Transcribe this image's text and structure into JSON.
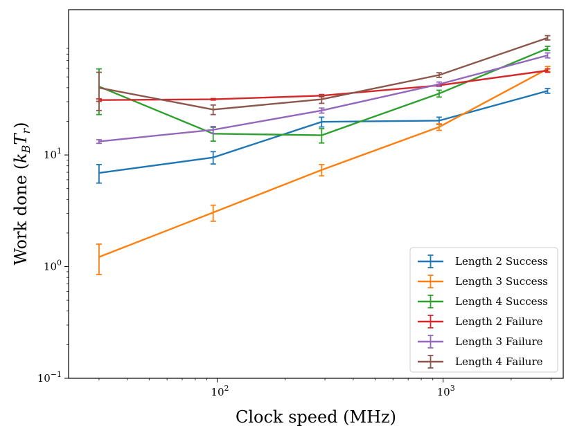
{
  "chart_data": {
    "type": "line",
    "title": "",
    "xlabel": "Clock speed (MHz)",
    "ylabel": {
      "main": "Work done (",
      "k": "k",
      "k_sub": "B",
      "t": "T",
      "t_sub": "r",
      "close": ")"
    },
    "xscale": "log",
    "yscale": "log",
    "xlim": [
      22,
      3400
    ],
    "ylim": [
      0.1,
      200
    ],
    "x_ticks": [
      {
        "value": 100,
        "base": "10",
        "exp": "2"
      },
      {
        "value": 1000,
        "base": "10",
        "exp": "3"
      }
    ],
    "y_ticks": [
      {
        "value": 0.1,
        "base": "10",
        "exp": "−1"
      },
      {
        "value": 1,
        "base": "10",
        "exp": "0"
      },
      {
        "value": 10,
        "base": "10",
        "exp": "1"
      }
    ],
    "legend_position": "lower-right",
    "x": [
      30,
      96,
      290,
      960,
      2900
    ],
    "series": [
      {
        "name": "Length 2 Success",
        "color": "#1f77b4",
        "values": [
          6.9,
          9.5,
          19.8,
          20.3,
          37.5
        ],
        "errors": [
          1.3,
          1.2,
          2.0,
          1.5,
          1.8
        ]
      },
      {
        "name": "Length 3 Success",
        "color": "#ff7f0e",
        "values": [
          1.22,
          3.05,
          7.35,
          17.8,
          59
        ],
        "errors": [
          0.37,
          0.5,
          0.85,
          1.2,
          3.0
        ]
      },
      {
        "name": "Length 4 Success",
        "color": "#2ca02c",
        "values": [
          41,
          15.5,
          15.0,
          35.5,
          90
        ],
        "errors": [
          18,
          2.2,
          2.2,
          2.5,
          4.0
        ]
      },
      {
        "name": "Length 2 Failure",
        "color": "#d62728",
        "values": [
          31,
          31.5,
          34,
          42,
          57
        ],
        "errors": [
          0.8,
          0.5,
          0.8,
          1.0,
          2.0
        ]
      },
      {
        "name": "Length 3 Failure",
        "color": "#9467bd",
        "values": [
          13.2,
          16.8,
          25,
          43,
          78
        ],
        "errors": [
          0.5,
          1.2,
          1.3,
          2.0,
          4.0
        ]
      },
      {
        "name": "Length 4 Failure",
        "color": "#8c564b",
        "values": [
          40,
          25.5,
          31.5,
          52,
          112
        ],
        "errors": [
          15,
          2.5,
          2.5,
          2.5,
          5.0
        ]
      }
    ]
  }
}
